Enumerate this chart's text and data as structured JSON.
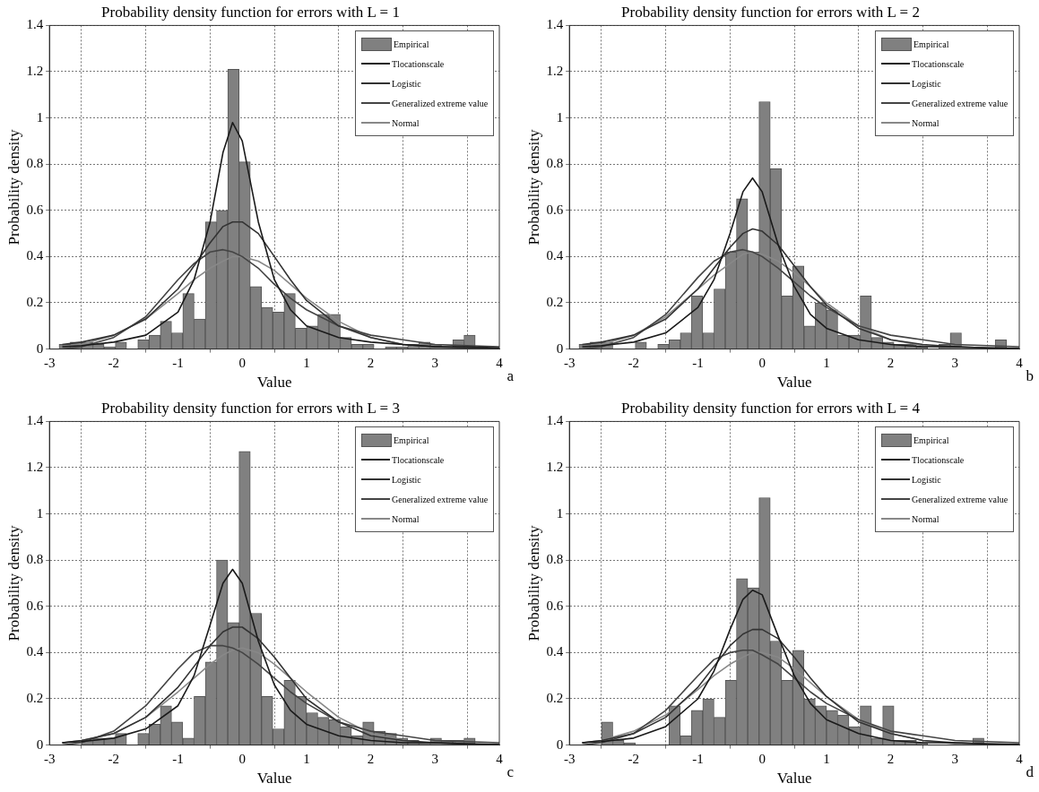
{
  "chart_data": [
    {
      "type": "histogram",
      "title": "Probability density function for errors with L = 1",
      "xlabel": "Value",
      "ylabel": "Probability density",
      "xlim": [
        -3,
        4
      ],
      "xticks": [
        -3,
        -2,
        -1,
        0,
        1,
        2,
        3,
        4
      ],
      "ylim": [
        0,
        1.4
      ],
      "yticks": [
        0,
        0.2,
        0.4,
        0.6,
        0.8,
        1,
        1.2,
        1.4
      ],
      "grid": true,
      "legend": "top right",
      "annotations": [
        "a"
      ],
      "bins": [
        -2.85,
        -2.675,
        -2.5,
        -2.325,
        -2.15,
        -1.975,
        -1.8,
        -1.625,
        -1.45,
        -1.275,
        -1.1,
        -0.925,
        -0.75,
        -0.575,
        -0.4,
        -0.225,
        -0.05,
        0.125,
        0.3,
        0.475,
        0.65,
        0.825,
        1,
        1.175,
        1.35,
        1.525,
        1.7,
        1.875,
        2.05,
        2.225,
        2.4,
        2.575,
        2.75,
        2.925,
        3.1,
        3.275,
        3.45,
        3.625,
        3.8
      ],
      "series": [
        {
          "name": "Empirical",
          "color": "#808080",
          "values": [
            0.02,
            0.03,
            0.03,
            0.02,
            0.01,
            0.03,
            0,
            0.04,
            0.06,
            0.12,
            0.07,
            0.24,
            0.13,
            0.55,
            0.6,
            1.21,
            0.81,
            0.27,
            0.18,
            0.16,
            0.24,
            0.09,
            0.1,
            0.15,
            0.15,
            0.05,
            0.02,
            0.02,
            0,
            0.01,
            0.01,
            0.02,
            0.03,
            0.02,
            0.01,
            0.04,
            0.06,
            0
          ]
        },
        {
          "name": "Tlocationscale",
          "type": "line",
          "color": "#1a1a1a",
          "x": [
            -2.8,
            -2.5,
            -2,
            -1.5,
            -1,
            -0.75,
            -0.5,
            -0.3,
            -0.15,
            0,
            0.25,
            0.5,
            0.75,
            1,
            1.5,
            2,
            2.5,
            3,
            3.5,
            4
          ],
          "values": [
            0.01,
            0.015,
            0.03,
            0.06,
            0.16,
            0.3,
            0.55,
            0.85,
            0.98,
            0.9,
            0.55,
            0.3,
            0.17,
            0.1,
            0.05,
            0.03,
            0.02,
            0.01,
            0.01,
            0.005
          ]
        },
        {
          "name": "Logistic",
          "type": "line",
          "color": "#333333",
          "x": [
            -2.8,
            -2.5,
            -2,
            -1.5,
            -1,
            -0.75,
            -0.5,
            -0.3,
            -0.15,
            0,
            0.25,
            0.5,
            0.75,
            1,
            1.5,
            2,
            2.5,
            3,
            3.5,
            4
          ],
          "values": [
            0.02,
            0.03,
            0.06,
            0.13,
            0.26,
            0.36,
            0.46,
            0.53,
            0.55,
            0.55,
            0.5,
            0.4,
            0.3,
            0.21,
            0.1,
            0.05,
            0.02,
            0.01,
            0.005,
            0.002
          ]
        },
        {
          "name": "Generalized extreme value",
          "type": "line",
          "color": "#444444",
          "x": [
            -2.8,
            -2.5,
            -2,
            -1.5,
            -1,
            -0.75,
            -0.5,
            -0.3,
            -0.15,
            0,
            0.25,
            0.5,
            0.75,
            1,
            1.5,
            2,
            2.5,
            3,
            3.5,
            4
          ],
          "values": [
            0,
            0.01,
            0.05,
            0.14,
            0.3,
            0.37,
            0.42,
            0.43,
            0.42,
            0.4,
            0.35,
            0.28,
            0.22,
            0.17,
            0.1,
            0.06,
            0.04,
            0.02,
            0.015,
            0.01
          ]
        },
        {
          "name": "Normal",
          "type": "line",
          "color": "#888888",
          "x": [
            -2.8,
            -2.5,
            -2,
            -1.5,
            -1,
            -0.75,
            -0.5,
            -0.3,
            -0.15,
            0,
            0.25,
            0.5,
            0.75,
            1,
            1.5,
            2,
            2.5,
            3,
            3.5,
            4
          ],
          "values": [
            0.01,
            0.02,
            0.06,
            0.13,
            0.24,
            0.3,
            0.35,
            0.38,
            0.4,
            0.4,
            0.38,
            0.34,
            0.28,
            0.22,
            0.12,
            0.05,
            0.02,
            0.005,
            0.001,
            0
          ]
        }
      ]
    },
    {
      "type": "histogram",
      "title": "Probability density function for errors with L = 2",
      "xlabel": "Value",
      "ylabel": "Probability density",
      "xlim": [
        -3,
        4
      ],
      "xticks": [
        -3,
        -2,
        -1,
        0,
        1,
        2,
        3,
        4
      ],
      "ylim": [
        0,
        1.4
      ],
      "yticks": [
        0,
        0.2,
        0.4,
        0.6,
        0.8,
        1,
        1.2,
        1.4
      ],
      "grid": true,
      "legend": "top right",
      "annotations": [
        "b"
      ],
      "bins": [
        -2.85,
        -2.675,
        -2.5,
        -2.325,
        -2.15,
        -1.975,
        -1.8,
        -1.625,
        -1.45,
        -1.275,
        -1.1,
        -0.925,
        -0.75,
        -0.575,
        -0.4,
        -0.225,
        -0.05,
        0.125,
        0.3,
        0.475,
        0.65,
        0.825,
        1,
        1.175,
        1.35,
        1.525,
        1.7,
        1.875,
        2.05,
        2.225,
        2.4,
        2.575,
        2.75,
        2.925,
        3.1,
        3.275,
        3.45,
        3.625,
        3.8
      ],
      "series": [
        {
          "name": "Empirical",
          "color": "#808080",
          "values": [
            0.02,
            0.03,
            0.03,
            0,
            0,
            0.03,
            0,
            0.02,
            0.04,
            0.07,
            0.23,
            0.07,
            0.26,
            0.42,
            0.65,
            0.42,
            1.07,
            0.78,
            0.23,
            0.36,
            0.1,
            0.2,
            0.17,
            0.06,
            0.06,
            0.23,
            0.05,
            0.03,
            0.02,
            0.02,
            0.01,
            0,
            0.02,
            0.07,
            0,
            0,
            0,
            0.04
          ]
        },
        {
          "name": "Tlocationscale",
          "type": "line",
          "color": "#1a1a1a",
          "x": [
            -2.8,
            -2.5,
            -2,
            -1.5,
            -1,
            -0.75,
            -0.5,
            -0.3,
            -0.15,
            0,
            0.25,
            0.5,
            0.75,
            1,
            1.5,
            2,
            2.5,
            3,
            3.5,
            4
          ],
          "values": [
            0.01,
            0.015,
            0.03,
            0.07,
            0.18,
            0.3,
            0.5,
            0.68,
            0.74,
            0.68,
            0.45,
            0.27,
            0.15,
            0.09,
            0.04,
            0.02,
            0.01,
            0.01,
            0.005,
            0.003
          ]
        },
        {
          "name": "Logistic",
          "type": "line",
          "color": "#333333",
          "x": [
            -2.8,
            -2.5,
            -2,
            -1.5,
            -1,
            -0.75,
            -0.5,
            -0.3,
            -0.15,
            0,
            0.25,
            0.5,
            0.75,
            1,
            1.5,
            2,
            2.5,
            3,
            3.5,
            4
          ],
          "values": [
            0.02,
            0.03,
            0.06,
            0.13,
            0.26,
            0.35,
            0.44,
            0.5,
            0.52,
            0.51,
            0.45,
            0.36,
            0.27,
            0.19,
            0.09,
            0.04,
            0.02,
            0.01,
            0.005,
            0.002
          ]
        },
        {
          "name": "Generalized extreme value",
          "type": "line",
          "color": "#444444",
          "x": [
            -2.8,
            -2.5,
            -2,
            -1.5,
            -1,
            -0.75,
            -0.5,
            -0.3,
            -0.15,
            0,
            0.25,
            0.5,
            0.75,
            1,
            1.5,
            2,
            2.5,
            3,
            3.5,
            4
          ],
          "values": [
            0,
            0.01,
            0.05,
            0.15,
            0.31,
            0.38,
            0.42,
            0.43,
            0.42,
            0.4,
            0.35,
            0.29,
            0.23,
            0.18,
            0.1,
            0.06,
            0.04,
            0.02,
            0.015,
            0.01
          ]
        },
        {
          "name": "Normal",
          "type": "line",
          "color": "#888888",
          "x": [
            -2.8,
            -2.5,
            -2,
            -1.5,
            -1,
            -0.75,
            -0.5,
            -0.3,
            -0.15,
            0,
            0.25,
            0.5,
            0.75,
            1,
            1.5,
            2,
            2.5,
            3,
            3.5,
            4
          ],
          "values": [
            0.01,
            0.02,
            0.06,
            0.14,
            0.26,
            0.32,
            0.37,
            0.41,
            0.42,
            0.41,
            0.38,
            0.33,
            0.27,
            0.2,
            0.1,
            0.04,
            0.015,
            0.004,
            0.001,
            0
          ]
        }
      ]
    },
    {
      "type": "histogram",
      "title": "Probability density function for errors with L = 3",
      "xlabel": "Value",
      "ylabel": "Probability density",
      "xlim": [
        -3,
        4
      ],
      "xticks": [
        -3,
        -2,
        -1,
        0,
        1,
        2,
        3,
        4
      ],
      "ylim": [
        0,
        1.4
      ],
      "yticks": [
        0,
        0.2,
        0.4,
        0.6,
        0.8,
        1,
        1.2,
        1.4
      ],
      "grid": true,
      "legend": "top right",
      "annotations": [
        "c"
      ],
      "bins": [
        -2.85,
        -2.675,
        -2.5,
        -2.325,
        -2.15,
        -1.975,
        -1.8,
        -1.625,
        -1.45,
        -1.275,
        -1.1,
        -0.925,
        -0.75,
        -0.575,
        -0.4,
        -0.225,
        -0.05,
        0.125,
        0.3,
        0.475,
        0.65,
        0.825,
        1,
        1.175,
        1.35,
        1.525,
        1.7,
        1.875,
        2.05,
        2.225,
        2.4,
        2.575,
        2.75,
        2.925,
        3.1,
        3.275,
        3.45,
        3.625,
        3.8
      ],
      "series": [
        {
          "name": "Empirical",
          "color": "#808080",
          "values": [
            0,
            0,
            0.02,
            0.03,
            0.03,
            0.05,
            0,
            0.05,
            0.09,
            0.17,
            0.1,
            0.03,
            0.21,
            0.36,
            0.8,
            0.53,
            1.27,
            0.57,
            0.21,
            0.07,
            0.28,
            0.21,
            0.14,
            0.12,
            0.11,
            0.08,
            0.04,
            0.1,
            0.06,
            0.05,
            0.03,
            0.02,
            0.01,
            0.03,
            0.02,
            0.02,
            0.03,
            0
          ]
        },
        {
          "name": "Tlocationscale",
          "type": "line",
          "color": "#1a1a1a",
          "x": [
            -2.8,
            -2.5,
            -2,
            -1.5,
            -1,
            -0.75,
            -0.5,
            -0.3,
            -0.15,
            0,
            0.25,
            0.5,
            0.75,
            1,
            1.5,
            2,
            2.5,
            3,
            3.5,
            4
          ],
          "values": [
            0.01,
            0.015,
            0.03,
            0.07,
            0.17,
            0.3,
            0.52,
            0.7,
            0.76,
            0.7,
            0.45,
            0.26,
            0.15,
            0.09,
            0.04,
            0.02,
            0.01,
            0.01,
            0.005,
            0.003
          ]
        },
        {
          "name": "Logistic",
          "type": "line",
          "color": "#333333",
          "x": [
            -2.8,
            -2.5,
            -2,
            -1.5,
            -1,
            -0.75,
            -0.5,
            -0.3,
            -0.15,
            0,
            0.25,
            0.5,
            0.75,
            1,
            1.5,
            2,
            2.5,
            3,
            3.5,
            4
          ],
          "values": [
            0.01,
            0.02,
            0.05,
            0.12,
            0.25,
            0.34,
            0.43,
            0.49,
            0.51,
            0.51,
            0.46,
            0.38,
            0.29,
            0.2,
            0.1,
            0.04,
            0.02,
            0.01,
            0.005,
            0.002
          ]
        },
        {
          "name": "Generalized extreme value",
          "type": "line",
          "color": "#444444",
          "x": [
            -2.8,
            -2.5,
            -2,
            -1.5,
            -1,
            -0.75,
            -0.5,
            -0.3,
            -0.15,
            0,
            0.25,
            0.5,
            0.75,
            1,
            1.5,
            2,
            2.5,
            3,
            3.5,
            4
          ],
          "values": [
            0,
            0.01,
            0.06,
            0.17,
            0.33,
            0.4,
            0.43,
            0.43,
            0.42,
            0.4,
            0.35,
            0.29,
            0.23,
            0.18,
            0.1,
            0.06,
            0.04,
            0.02,
            0.015,
            0.01
          ]
        },
        {
          "name": "Normal",
          "type": "line",
          "color": "#888888",
          "x": [
            -2.8,
            -2.5,
            -2,
            -1.5,
            -1,
            -0.75,
            -0.5,
            -0.3,
            -0.15,
            0,
            0.25,
            0.5,
            0.75,
            1,
            1.5,
            2,
            2.5,
            3,
            3.5,
            4
          ],
          "values": [
            0.01,
            0.02,
            0.05,
            0.12,
            0.23,
            0.29,
            0.35,
            0.39,
            0.41,
            0.42,
            0.4,
            0.35,
            0.29,
            0.23,
            0.12,
            0.05,
            0.02,
            0.005,
            0.001,
            0
          ]
        }
      ]
    },
    {
      "type": "histogram",
      "title": "Probability density function for errors with L = 4",
      "xlabel": "Value",
      "ylabel": "Probability density",
      "xlim": [
        -3,
        4
      ],
      "xticks": [
        -3,
        -2,
        -1,
        0,
        1,
        2,
        3,
        4
      ],
      "ylim": [
        0,
        1.4
      ],
      "yticks": [
        0,
        0.2,
        0.4,
        0.6,
        0.8,
        1,
        1.2,
        1.4
      ],
      "grid": true,
      "legend": "top right",
      "annotations": [
        "d"
      ],
      "bins": [
        -2.85,
        -2.675,
        -2.5,
        -2.325,
        -2.15,
        -1.975,
        -1.8,
        -1.625,
        -1.45,
        -1.275,
        -1.1,
        -0.925,
        -0.75,
        -0.575,
        -0.4,
        -0.225,
        -0.05,
        0.125,
        0.3,
        0.475,
        0.65,
        0.825,
        1,
        1.175,
        1.35,
        1.525,
        1.7,
        1.875,
        2.05,
        2.225,
        2.4,
        2.575,
        2.75,
        2.925,
        3.1,
        3.275,
        3.45,
        3.625,
        3.8
      ],
      "series": [
        {
          "name": "Empirical",
          "color": "#808080",
          "values": [
            0,
            0,
            0.1,
            0.02,
            0.01,
            0,
            0,
            0,
            0.17,
            0.04,
            0.15,
            0.2,
            0.12,
            0.28,
            0.72,
            0.68,
            1.07,
            0.45,
            0.28,
            0.41,
            0.2,
            0.17,
            0.15,
            0.13,
            0.08,
            0.17,
            0.03,
            0.17,
            0.02,
            0.02,
            0.01,
            0,
            0,
            0,
            0.01,
            0.03,
            0,
            0
          ]
        },
        {
          "name": "Tlocationscale",
          "type": "line",
          "color": "#1a1a1a",
          "x": [
            -2.8,
            -2.5,
            -2,
            -1.5,
            -1,
            -0.75,
            -0.5,
            -0.3,
            -0.15,
            0,
            0.25,
            0.5,
            0.75,
            1,
            1.5,
            2,
            2.5,
            3,
            3.5,
            4
          ],
          "values": [
            0.01,
            0.015,
            0.03,
            0.08,
            0.2,
            0.32,
            0.5,
            0.63,
            0.67,
            0.65,
            0.47,
            0.3,
            0.18,
            0.11,
            0.05,
            0.02,
            0.01,
            0.01,
            0.005,
            0.003
          ]
        },
        {
          "name": "Logistic",
          "type": "line",
          "color": "#333333",
          "x": [
            -2.8,
            -2.5,
            -2,
            -1.5,
            -1,
            -0.75,
            -0.5,
            -0.3,
            -0.15,
            0,
            0.25,
            0.5,
            0.75,
            1,
            1.5,
            2,
            2.5,
            3,
            3.5,
            4
          ],
          "values": [
            0.01,
            0.02,
            0.05,
            0.12,
            0.25,
            0.34,
            0.43,
            0.48,
            0.5,
            0.5,
            0.46,
            0.38,
            0.29,
            0.21,
            0.1,
            0.05,
            0.02,
            0.01,
            0.005,
            0.002
          ]
        },
        {
          "name": "Generalized extreme value",
          "type": "line",
          "color": "#444444",
          "x": [
            -2.8,
            -2.5,
            -2,
            -1.5,
            -1,
            -0.75,
            -0.5,
            -0.3,
            -0.15,
            0,
            0.25,
            0.5,
            0.75,
            1,
            1.5,
            2,
            2.5,
            3,
            3.5,
            4
          ],
          "values": [
            0,
            0.01,
            0.05,
            0.15,
            0.3,
            0.37,
            0.4,
            0.41,
            0.41,
            0.39,
            0.35,
            0.29,
            0.23,
            0.18,
            0.11,
            0.06,
            0.04,
            0.02,
            0.015,
            0.01
          ]
        },
        {
          "name": "Normal",
          "type": "line",
          "color": "#888888",
          "x": [
            -2.8,
            -2.5,
            -2,
            -1.5,
            -1,
            -0.75,
            -0.5,
            -0.3,
            -0.15,
            0,
            0.25,
            0.5,
            0.75,
            1,
            1.5,
            2,
            2.5,
            3,
            3.5,
            4
          ],
          "values": [
            0.01,
            0.02,
            0.06,
            0.13,
            0.24,
            0.3,
            0.35,
            0.38,
            0.4,
            0.4,
            0.38,
            0.33,
            0.27,
            0.21,
            0.11,
            0.05,
            0.02,
            0.005,
            0.001,
            0
          ]
        }
      ]
    }
  ]
}
